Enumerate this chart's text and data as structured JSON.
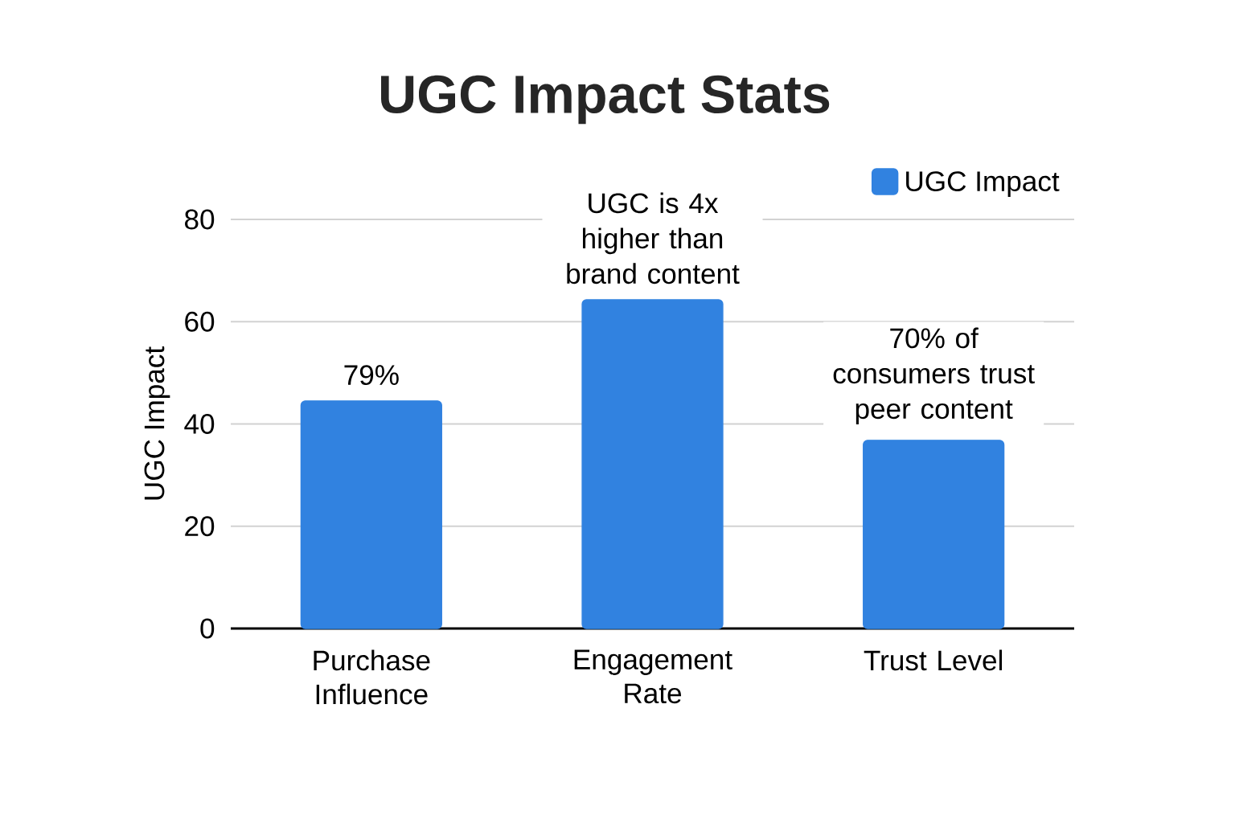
{
  "chart_data": {
    "type": "bar",
    "title": "UGC Impact Stats",
    "ylabel": "UGC Impact",
    "categories": [
      "Purchase Influence",
      "Engagement Rate",
      "Trust Level"
    ],
    "series": [
      {
        "name": "UGC Impact",
        "color": "#3182e0",
        "values": [
          44.5,
          64.3,
          36.8
        ]
      }
    ],
    "ylim": [
      0,
      80
    ],
    "yticks": [
      0,
      20,
      40,
      60,
      80
    ],
    "grid": "y",
    "legend": "top right",
    "annotations": [
      {
        "text": "79%",
        "x": "Purchase Influence",
        "y": 44.5
      },
      {
        "text": "UGC is 4x higher than brand content",
        "x": "Engagement Rate",
        "y": 64.3
      },
      {
        "text": "70% of consumers trust peer content",
        "x": "Trust Level",
        "y": 36.8
      }
    ]
  }
}
